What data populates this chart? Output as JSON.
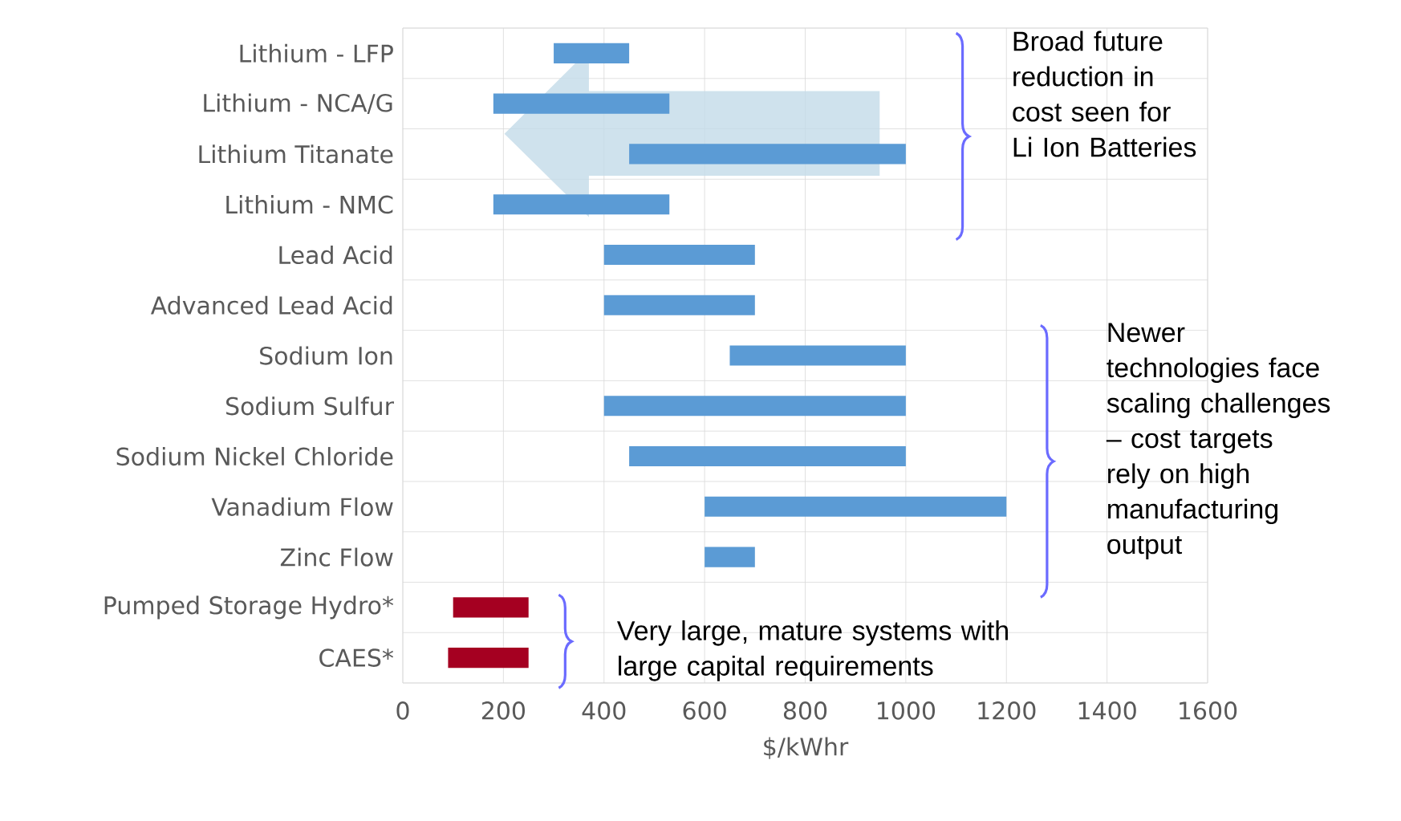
{
  "chart_data": {
    "type": "bar",
    "orientation": "horizontal",
    "xlabel": "$/kWhr",
    "categories": [
      "Lithium - LFP",
      "Lithium - NCA/G",
      "Lithium Titanate",
      "Lithium - NMC",
      "Lead Acid",
      "Advanced Lead Acid",
      "Sodium Ion",
      "Sodium Sulfur",
      "Sodium Nickel Chloride",
      "Vanadium Flow",
      "Zinc Flow",
      "Pumped Storage Hydro*",
      "CAES*"
    ],
    "base": [
      300,
      180,
      450,
      180,
      400,
      400,
      650,
      400,
      450,
      600,
      600,
      100,
      90
    ],
    "values": [
      150,
      350,
      550,
      350,
      300,
      300,
      350,
      600,
      550,
      600,
      100,
      150,
      160
    ],
    "colors": [
      "#5b9bd5",
      "#5b9bd5",
      "#5b9bd5",
      "#5b9bd5",
      "#5b9bd5",
      "#5b9bd5",
      "#5b9bd5",
      "#5b9bd5",
      "#5b9bd5",
      "#5b9bd5",
      "#5b9bd5",
      "#a50021",
      "#a50021"
    ],
    "xlim": [
      0,
      1600
    ],
    "xticks": [
      0,
      200,
      400,
      600,
      800,
      1000,
      1200,
      1400,
      1600
    ],
    "grid": true,
    "annotations": [
      "Broad future reduction in cost seen for Li Ion Batteries",
      "Newer technologies face scaling challenges – cost targets rely on high manufacturing output",
      "Very large, mature systems with large capital requirements"
    ]
  }
}
